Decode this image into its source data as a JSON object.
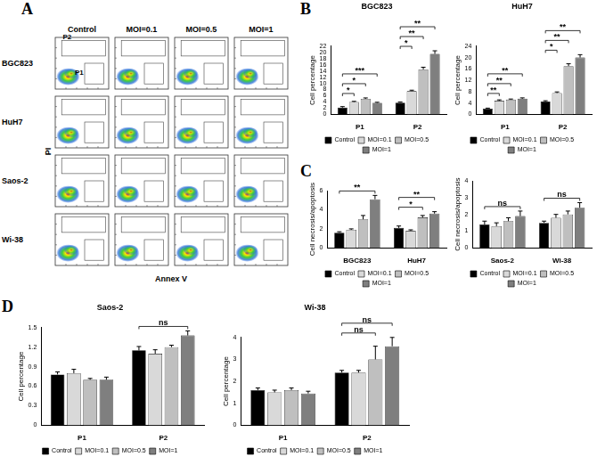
{
  "panel_labels": [
    "A",
    "B",
    "C",
    "D"
  ],
  "flow_cytometry": {
    "columns": [
      "Control",
      "MOI=0.1",
      "MOI=0.5",
      "MOI=1"
    ],
    "rows": [
      "BGC823",
      "HuH7",
      "Saos-2",
      "Wi-38"
    ],
    "x_label": "Annex V",
    "y_label": "PI",
    "gates": [
      "P2",
      "P1"
    ]
  },
  "chart_data": [
    {
      "type": "bar",
      "title": "BGC823",
      "y_label": "Cell percentage",
      "categories": [
        "P1",
        "P2"
      ],
      "series": [
        {
          "name": "Control",
          "color": "#000000",
          "values": [
            2.2,
            3.8
          ],
          "errors": [
            0.3,
            0.2
          ]
        },
        {
          "name": "MOI=0.1",
          "color": "#d9d9d9",
          "values": [
            4.0,
            7.5
          ],
          "errors": [
            0.2,
            0.3
          ]
        },
        {
          "name": "MOI=0.5",
          "color": "#bfbfbf",
          "values": [
            5.0,
            14.5
          ],
          "errors": [
            0.3,
            0.7
          ]
        },
        {
          "name": "MOI=1",
          "color": "#7f7f7f",
          "values": [
            3.7,
            19.5
          ],
          "errors": [
            0.2,
            1.0
          ]
        }
      ],
      "ylim": [
        0,
        22
      ],
      "yticks": [
        0,
        2,
        4,
        6,
        8,
        10,
        12,
        14,
        16,
        18,
        20,
        22
      ],
      "grid": false,
      "legend": "bottom",
      "annotations": [
        {
          "text": "*",
          "category": "P1",
          "from": "Control",
          "to": "MOI=0.1"
        },
        {
          "text": "*",
          "category": "P1",
          "from": "Control",
          "to": "MOI=0.5"
        },
        {
          "text": "***",
          "category": "P1",
          "from": "Control",
          "to": "MOI=1"
        },
        {
          "text": "*",
          "category": "P2",
          "from": "Control",
          "to": "MOI=0.1"
        },
        {
          "text": "**",
          "category": "P2",
          "from": "Control",
          "to": "MOI=0.5"
        },
        {
          "text": "**",
          "category": "P2",
          "from": "Control",
          "to": "MOI=1"
        }
      ]
    },
    {
      "type": "bar",
      "title": "HuH7",
      "y_label": "Cell percentage",
      "categories": [
        "P1",
        "P2"
      ],
      "series": [
        {
          "name": "Control",
          "color": "#000000",
          "values": [
            2.0,
            4.5
          ],
          "errors": [
            0.2,
            0.3
          ]
        },
        {
          "name": "MOI=0.1",
          "color": "#d9d9d9",
          "values": [
            4.8,
            7.5
          ],
          "errors": [
            0.3,
            0.4
          ]
        },
        {
          "name": "MOI=0.5",
          "color": "#bfbfbf",
          "values": [
            5.2,
            17.0
          ],
          "errors": [
            0.2,
            0.8
          ]
        },
        {
          "name": "MOI=1",
          "color": "#7f7f7f",
          "values": [
            5.5,
            20.0
          ],
          "errors": [
            0.3,
            1.0
          ]
        }
      ],
      "ylim": [
        0,
        24
      ],
      "yticks": [
        0,
        4,
        8,
        12,
        16,
        20,
        24
      ],
      "grid": false,
      "legend": "bottom",
      "annotations": [
        {
          "text": "**",
          "category": "P1",
          "from": "Control",
          "to": "MOI=0.1"
        },
        {
          "text": "**",
          "category": "P1",
          "from": "Control",
          "to": "MOI=0.5"
        },
        {
          "text": "**",
          "category": "P1",
          "from": "Control",
          "to": "MOI=1"
        },
        {
          "text": "*",
          "category": "P2",
          "from": "Control",
          "to": "MOI=0.1"
        },
        {
          "text": "**",
          "category": "P2",
          "from": "Control",
          "to": "MOI=0.5"
        },
        {
          "text": "**",
          "category": "P2",
          "from": "Control",
          "to": "MOI=1"
        }
      ]
    },
    {
      "type": "bar",
      "y_label": "Cell necrosis/apoptosis",
      "categories": [
        "BGC823",
        "HuH7"
      ],
      "series": [
        {
          "name": "Control",
          "color": "#000000",
          "values": [
            1.6,
            2.1
          ],
          "errors": [
            0.1,
            0.2
          ]
        },
        {
          "name": "MOI=0.1",
          "color": "#d9d9d9",
          "values": [
            1.9,
            1.8
          ],
          "errors": [
            0.1,
            0.1
          ]
        },
        {
          "name": "MOI=0.5",
          "color": "#bfbfbf",
          "values": [
            3.0,
            3.2
          ],
          "errors": [
            0.4,
            0.2
          ]
        },
        {
          "name": "MOI=1",
          "color": "#7f7f7f",
          "values": [
            5.1,
            3.6
          ],
          "errors": [
            0.4,
            0.2
          ]
        }
      ],
      "ylim": [
        0,
        6
      ],
      "yticks": [
        0,
        2,
        4,
        6
      ],
      "grid": false,
      "legend": "bottom",
      "annotations": [
        {
          "text": "**",
          "category": "BGC823",
          "from": "Control",
          "to": "MOI=1"
        },
        {
          "text": "*",
          "category": "HuH7",
          "from": "Control",
          "to": "MOI=0.5"
        },
        {
          "text": "**",
          "category": "HuH7",
          "from": "Control",
          "to": "MOI=1"
        }
      ]
    },
    {
      "type": "bar",
      "y_label": "Cell necrosis/apoptosis",
      "categories": [
        "Saos-2",
        "Wi-38"
      ],
      "series": [
        {
          "name": "Control",
          "color": "#000000",
          "values": [
            1.4,
            1.5
          ],
          "errors": [
            0.2,
            0.1
          ]
        },
        {
          "name": "MOI=0.1",
          "color": "#d9d9d9",
          "values": [
            1.3,
            1.8
          ],
          "errors": [
            0.2,
            0.2
          ]
        },
        {
          "name": "MOI=0.5",
          "color": "#bfbfbf",
          "values": [
            1.6,
            2.0
          ],
          "errors": [
            0.2,
            0.2
          ]
        },
        {
          "name": "MOI=1",
          "color": "#7f7f7f",
          "values": [
            1.9,
            2.4
          ],
          "errors": [
            0.3,
            0.3
          ]
        }
      ],
      "ylim": [
        0,
        4
      ],
      "yticks": [
        0,
        1,
        2,
        3,
        4
      ],
      "grid": false,
      "legend": "bottom",
      "annotations": [
        {
          "text": "ns",
          "category": "Saos-2",
          "from": "Control",
          "to": "MOI=1"
        },
        {
          "text": "ns",
          "category": "Wi-38",
          "from": "Control",
          "to": "MOI=1"
        }
      ]
    },
    {
      "type": "bar",
      "title": "Saos-2",
      "y_label": "Cell percentage",
      "categories": [
        "P1",
        "P2"
      ],
      "series": [
        {
          "name": "Control",
          "color": "#000000",
          "values": [
            0.78,
            1.15
          ],
          "errors": [
            0.04,
            0.06
          ]
        },
        {
          "name": "MOI=0.1",
          "color": "#d9d9d9",
          "values": [
            0.8,
            1.1
          ],
          "errors": [
            0.06,
            0.06
          ]
        },
        {
          "name": "MOI=0.5",
          "color": "#bfbfbf",
          "values": [
            0.7,
            1.2
          ],
          "errors": [
            0.02,
            0.03
          ]
        },
        {
          "name": "MOI=1",
          "color": "#7f7f7f",
          "values": [
            0.7,
            1.38
          ],
          "errors": [
            0.04,
            0.07
          ]
        }
      ],
      "ylim": [
        0,
        1.5
      ],
      "yticks": [
        0,
        0.3,
        0.6,
        0.9,
        1.2,
        1.5
      ],
      "grid": false,
      "legend": "bottom",
      "annotations": [
        {
          "text": "ns",
          "category": "P2",
          "from": "Control",
          "to": "MOI=1"
        }
      ]
    },
    {
      "type": "bar",
      "title": "Wi-38",
      "y_label": "Cell percentage",
      "categories": [
        "P1",
        "P2"
      ],
      "series": [
        {
          "name": "Control",
          "color": "#000000",
          "values": [
            1.6,
            2.4
          ],
          "errors": [
            0.1,
            0.1
          ]
        },
        {
          "name": "MOI=0.1",
          "color": "#d9d9d9",
          "values": [
            1.5,
            2.4
          ],
          "errors": [
            0.1,
            0.1
          ]
        },
        {
          "name": "MOI=0.5",
          "color": "#bfbfbf",
          "values": [
            1.6,
            3.0
          ],
          "errors": [
            0.1,
            0.6
          ]
        },
        {
          "name": "MOI=1",
          "color": "#7f7f7f",
          "values": [
            1.45,
            3.6
          ],
          "errors": [
            0.1,
            0.4
          ]
        }
      ],
      "ylim": [
        0,
        4
      ],
      "yticks": [
        0,
        1,
        2,
        3,
        4
      ],
      "grid": false,
      "legend": "bottom",
      "annotations": [
        {
          "text": "ns",
          "category": "P2",
          "from": "Control",
          "to": "MOI=0.5"
        },
        {
          "text": "ns",
          "category": "P2",
          "from": "Control",
          "to": "MOI=1"
        }
      ]
    }
  ]
}
